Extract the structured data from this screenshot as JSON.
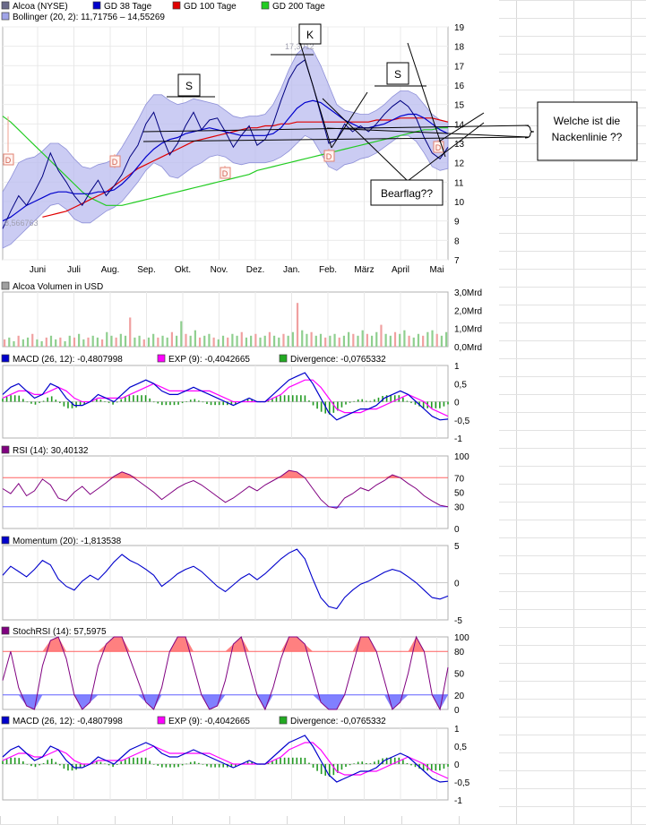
{
  "colors": {
    "price_line": "#000080",
    "gd38": "#0000cc",
    "gd100": "#e00000",
    "gd200": "#22cc22",
    "bollinger_fill": "#b9bbef",
    "volume": "#8fcf8f",
    "macd": "#0000cc",
    "exp": "#ff00ff",
    "rsi": "#800080",
    "stoch": "#800080",
    "momentum": "#0000cc",
    "upper_zone": "#ff8080",
    "lower_zone": "#8080ff"
  },
  "chart_data": [
    {
      "id": "price",
      "type": "line",
      "legend": [
        {
          "label": "Alcoa (NYSE)",
          "color": "#6a6a8a"
        },
        {
          "label": "GD 38 Tage",
          "color": "#0000cc"
        },
        {
          "label": "GD 100 Tage",
          "color": "#e00000"
        },
        {
          "label": "GD 200 Tage",
          "color": "#22cc22"
        }
      ],
      "legend2": {
        "label": "Bollinger (20, 2): 11,71756 – 14,55269",
        "color": "#a0a4e8"
      },
      "x_ticks": [
        "Juni",
        "Juli",
        "Aug.",
        "Sep.",
        "Okt.",
        "Nov.",
        "Dez.",
        "Jan.",
        "Feb.",
        "März",
        "April",
        "Mai"
      ],
      "y_ticks": [
        "19",
        "18",
        "17",
        "16",
        "15",
        "14",
        "13",
        "12",
        "11",
        "10",
        "9",
        "8",
        "7"
      ],
      "ylim": [
        7,
        19
      ],
      "price_labels": {
        "high": "17,3012",
        "low": "8,566763"
      },
      "events": [
        "D",
        "D",
        "D",
        "D",
        "D"
      ],
      "series": [
        {
          "name": "Alcoa (NYSE)",
          "values": [
            8.6,
            9.5,
            10.3,
            9.8,
            10.5,
            11.3,
            12.5,
            11.6,
            11.0,
            10.3,
            9.8,
            10.5,
            11.1,
            10.3,
            10.8,
            11.4,
            12.3,
            12.9,
            14.0,
            14.6,
            13.4,
            12.4,
            13.0,
            13.9,
            14.6,
            13.7,
            14.2,
            14.3,
            13.6,
            12.8,
            13.4,
            13.9,
            12.9,
            13.2,
            14.0,
            15.2,
            16.3,
            17.0,
            17.3,
            16.0,
            14.5,
            13.0,
            13.2,
            14.0,
            13.6,
            13.9,
            13.6,
            14.0,
            14.5,
            14.9,
            15.2,
            14.9,
            14.3,
            13.3,
            12.5,
            12.2,
            12.8
          ]
        },
        {
          "name": "GD 38 Tage",
          "values": [
            9.0,
            9.2,
            9.5,
            9.8,
            10.0,
            10.2,
            10.4,
            10.5,
            10.5,
            10.4,
            10.4,
            10.4,
            10.5,
            10.5,
            10.6,
            10.9,
            11.3,
            11.8,
            12.3,
            12.7,
            13.0,
            13.2,
            13.3,
            13.5,
            13.6,
            13.7,
            13.8,
            13.7,
            13.6,
            13.5,
            13.4,
            13.4,
            13.4,
            13.4,
            13.5,
            13.8,
            14.3,
            14.8,
            15.1,
            15.2,
            15.1,
            14.8,
            14.5,
            14.2,
            14.0,
            13.8,
            13.8,
            13.9,
            14.0,
            14.2,
            14.4,
            14.5,
            14.5,
            14.3,
            14.0,
            13.7,
            13.5
          ]
        },
        {
          "name": "GD 100 Tage",
          "values": [
            null,
            null,
            null,
            null,
            null,
            9.2,
            9.3,
            9.4,
            9.5,
            9.7,
            9.9,
            10.1,
            10.3,
            10.5,
            10.8,
            11.1,
            11.4,
            11.7,
            11.9,
            12.1,
            12.3,
            12.5,
            12.7,
            12.9,
            13.1,
            13.2,
            13.3,
            13.4,
            13.5,
            13.6,
            13.7,
            13.8,
            13.8,
            13.9,
            13.9,
            14.0,
            14.0,
            14.1,
            14.1,
            14.1,
            14.1,
            14.1,
            14.1,
            14.1,
            14.1,
            14.1,
            14.1,
            14.2,
            14.2,
            14.2,
            14.3,
            14.3,
            14.3,
            14.3,
            14.3,
            14.2,
            14.1
          ]
        },
        {
          "name": "GD 200 Tage",
          "values": [
            14.4,
            14.1,
            13.7,
            13.3,
            12.9,
            12.5,
            12.1,
            11.7,
            11.3,
            10.9,
            10.5,
            10.2,
            10.0,
            9.8,
            9.8,
            9.8,
            9.9,
            10.0,
            10.1,
            10.2,
            10.3,
            10.4,
            10.5,
            10.6,
            10.7,
            10.8,
            10.9,
            11.0,
            11.1,
            11.2,
            11.3,
            11.4,
            11.6,
            11.7,
            11.8,
            11.9,
            12.0,
            12.1,
            12.2,
            12.3,
            12.4,
            12.5,
            12.6,
            12.7,
            12.8,
            12.9,
            13.0,
            13.1,
            13.2,
            13.3,
            13.4,
            13.5,
            13.6,
            13.7,
            13.7,
            13.8,
            13.8
          ]
        },
        {
          "name": "Bollinger upper",
          "values": [
            10.5,
            11.2,
            12.0,
            12.2,
            12.3,
            12.6,
            13.0,
            13.0,
            12.7,
            12.2,
            11.8,
            11.7,
            11.9,
            12.0,
            12.2,
            12.8,
            13.5,
            14.2,
            15.0,
            15.5,
            15.5,
            15.2,
            15.0,
            15.1,
            15.3,
            15.2,
            15.1,
            15.0,
            14.7,
            14.4,
            14.3,
            14.4,
            14.4,
            14.5,
            15.0,
            15.8,
            16.8,
            17.6,
            18.0,
            17.8,
            17.0,
            16.0,
            15.0,
            14.7,
            14.6,
            14.5,
            14.5,
            14.7,
            15.0,
            15.4,
            15.7,
            15.7,
            15.5,
            15.0,
            14.5,
            14.2,
            14.1
          ]
        },
        {
          "name": "Bollinger lower",
          "values": [
            7.6,
            7.8,
            8.2,
            8.6,
            9.0,
            9.4,
            9.8,
            9.9,
            9.6,
            9.1,
            8.9,
            8.9,
            9.2,
            9.5,
            9.7,
            10.0,
            10.5,
            11.0,
            11.6,
            12.0,
            11.8,
            11.3,
            11.2,
            11.5,
            11.8,
            12.0,
            12.3,
            12.4,
            12.3,
            12.0,
            11.9,
            12.0,
            12.0,
            12.0,
            12.1,
            12.3,
            12.6,
            13.0,
            13.4,
            13.2,
            12.5,
            11.8,
            11.6,
            11.9,
            12.0,
            12.2,
            12.3,
            12.5,
            12.8,
            13.1,
            13.4,
            13.4,
            13.1,
            12.5,
            11.8,
            11.6,
            11.7
          ]
        }
      ]
    },
    {
      "id": "volume",
      "type": "bar",
      "legend": {
        "label": "Alcoa Volumen in USD",
        "color": "#a0a0a0"
      },
      "y_ticks": [
        "3,0Mrd",
        "2,0Mrd",
        "1,0Mrd",
        "0,0Mrd"
      ],
      "ylim": [
        0,
        3.0
      ],
      "values": [
        0.4,
        0.5,
        0.3,
        0.6,
        0.4,
        0.5,
        0.7,
        0.4,
        0.3,
        0.5,
        0.6,
        0.4,
        0.5,
        0.3,
        0.6,
        0.5,
        0.7,
        0.4,
        0.5,
        0.6,
        0.5,
        0.4,
        0.8,
        0.6,
        0.5,
        0.7,
        0.6,
        1.6,
        0.5,
        0.6,
        0.4,
        0.5,
        0.7,
        0.5,
        0.6,
        0.5,
        0.8,
        0.6,
        1.4,
        0.7,
        0.6,
        0.9,
        0.5,
        0.6,
        0.7,
        0.5,
        0.4,
        0.6,
        0.5,
        0.7,
        0.6,
        0.8,
        0.5,
        0.6,
        0.7,
        0.5,
        0.6,
        0.8,
        0.6,
        0.5,
        0.7,
        0.6,
        0.8,
        2.4,
        0.9,
        0.7,
        0.8,
        0.6,
        0.7,
        0.5,
        0.6,
        0.7,
        0.5,
        0.6,
        0.8,
        0.7,
        0.6,
        0.9,
        0.7,
        0.6,
        0.8,
        1.2,
        0.7,
        0.6,
        0.8,
        0.7,
        0.9,
        0.6,
        0.5,
        0.7,
        0.6,
        0.8,
        0.9,
        0.7,
        0.6,
        0.8
      ]
    },
    {
      "id": "macd",
      "type": "line",
      "legend": [
        {
          "label": "MACD (26, 12): -0,4807998",
          "color": "#0000cc"
        },
        {
          "label": "EXP (9): -0,4042665",
          "color": "#ff00ff"
        },
        {
          "label": "Divergence: -0,0765332",
          "color": "#22aa22"
        }
      ],
      "y_ticks": [
        "1",
        "0,5",
        "0",
        "-0,5",
        "-1"
      ],
      "ylim": [
        -1,
        1
      ],
      "series": [
        {
          "name": "MACD (26, 12): -0,4807998",
          "values": [
            0.2,
            0.4,
            0.5,
            0.3,
            0.1,
            0.2,
            0.5,
            0.4,
            0.1,
            -0.1,
            -0.1,
            0.0,
            0.2,
            0.1,
            0.0,
            0.2,
            0.4,
            0.5,
            0.6,
            0.5,
            0.3,
            0.2,
            0.2,
            0.3,
            0.4,
            0.3,
            0.2,
            0.1,
            0.0,
            -0.1,
            0.0,
            0.1,
            0.0,
            0.0,
            0.2,
            0.4,
            0.6,
            0.7,
            0.8,
            0.5,
            0.1,
            -0.3,
            -0.5,
            -0.4,
            -0.3,
            -0.2,
            -0.2,
            -0.1,
            0.1,
            0.2,
            0.3,
            0.2,
            0.0,
            -0.2,
            -0.4,
            -0.5,
            -0.48
          ]
        },
        {
          "name": "EXP (9): -0,4042665",
          "values": [
            0.1,
            0.2,
            0.3,
            0.3,
            0.2,
            0.2,
            0.3,
            0.4,
            0.3,
            0.1,
            0.0,
            0.0,
            0.1,
            0.1,
            0.1,
            0.1,
            0.2,
            0.3,
            0.4,
            0.5,
            0.4,
            0.3,
            0.3,
            0.3,
            0.3,
            0.3,
            0.3,
            0.2,
            0.1,
            0.0,
            0.0,
            0.0,
            0.0,
            0.0,
            0.1,
            0.2,
            0.4,
            0.5,
            0.6,
            0.6,
            0.4,
            0.1,
            -0.2,
            -0.3,
            -0.3,
            -0.3,
            -0.2,
            -0.2,
            -0.1,
            0.0,
            0.1,
            0.2,
            0.1,
            0.0,
            -0.2,
            -0.3,
            -0.4
          ]
        }
      ]
    },
    {
      "id": "rsi",
      "type": "line",
      "legend": {
        "label": "RSI (14): 30,40132",
        "color": "#800080"
      },
      "y_ticks": [
        "100",
        "70",
        "50",
        "30",
        "0"
      ],
      "ylim": [
        0,
        100
      ],
      "levels": [
        70,
        30
      ],
      "values": [
        55,
        48,
        62,
        45,
        52,
        68,
        60,
        42,
        38,
        50,
        58,
        47,
        55,
        63,
        72,
        78,
        74,
        66,
        58,
        50,
        40,
        48,
        56,
        62,
        66,
        60,
        52,
        44,
        36,
        42,
        50,
        58,
        52,
        60,
        66,
        72,
        80,
        78,
        70,
        55,
        40,
        30,
        28,
        42,
        48,
        56,
        52,
        60,
        66,
        74,
        70,
        62,
        55,
        45,
        38,
        32,
        30
      ]
    },
    {
      "id": "momentum",
      "type": "line",
      "legend": {
        "label": "Momentum (20): -1,813538",
        "color": "#0000cc"
      },
      "y_ticks": [
        "5",
        "0",
        "-5"
      ],
      "ylim": [
        -5,
        5
      ],
      "values": [
        1.0,
        2.2,
        1.5,
        0.8,
        1.8,
        3.0,
        2.4,
        0.5,
        -0.5,
        -1.0,
        0.2,
        1.0,
        0.4,
        1.5,
        2.8,
        3.8,
        3.0,
        2.5,
        1.8,
        1.0,
        -0.5,
        0.3,
        1.2,
        1.8,
        2.2,
        1.5,
        0.5,
        -0.5,
        -1.2,
        -0.3,
        0.6,
        1.2,
        0.4,
        1.2,
        2.2,
        3.2,
        4.0,
        4.5,
        3.2,
        0.5,
        -2.0,
        -3.2,
        -3.5,
        -2.0,
        -1.0,
        -0.2,
        0.2,
        0.8,
        1.4,
        1.8,
        1.5,
        0.8,
        0.0,
        -1.0,
        -2.0,
        -2.2,
        -1.8
      ]
    },
    {
      "id": "stochrsi",
      "type": "line",
      "legend": {
        "label": "StochRSI (14): 57,5975",
        "color": "#800080"
      },
      "y_ticks": [
        "100",
        "80",
        "50",
        "20",
        "0"
      ],
      "ylim": [
        0,
        100
      ],
      "levels": [
        80,
        20
      ],
      "values": [
        40,
        80,
        30,
        5,
        0,
        60,
        95,
        100,
        70,
        20,
        0,
        10,
        60,
        90,
        100,
        100,
        70,
        40,
        10,
        0,
        30,
        80,
        100,
        100,
        60,
        20,
        0,
        5,
        40,
        90,
        100,
        60,
        20,
        0,
        30,
        70,
        100,
        100,
        90,
        50,
        10,
        0,
        0,
        20,
        60,
        100,
        100,
        80,
        40,
        0,
        10,
        50,
        100,
        80,
        20,
        0,
        58
      ]
    },
    {
      "id": "macd2",
      "type": "line",
      "legend": [
        {
          "label": "MACD (26, 12): -0,4807998",
          "color": "#0000cc"
        },
        {
          "label": "EXP (9): -0,4042665",
          "color": "#ff00ff"
        },
        {
          "label": "Divergence: -0,0765332",
          "color": "#22aa22"
        }
      ],
      "y_ticks": [
        "1",
        "0,5",
        "0",
        "-0,5",
        "-1"
      ],
      "ylim": [
        -1,
        1
      ]
    }
  ],
  "annotations": {
    "s_left": "S",
    "k_mid": "K",
    "s_right": "S",
    "nackenlinie_line1": "Welche ist die",
    "nackenlinie_line2": "Nackenlinie ??",
    "bearflag": "Bearflag??"
  }
}
